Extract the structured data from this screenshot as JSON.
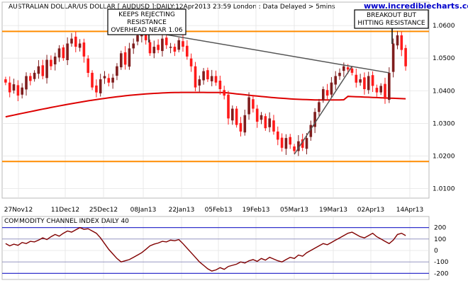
{
  "header": {
    "title": "AUSTRALIAN DOLLAR/US DOLLAR [ AUDUSD ]:DAILY:12Apr2013 23:59 London : Data Delayed > 5mins",
    "watermark": "www.incrediblecharts.com"
  },
  "annotations": {
    "left": [
      "KEEPS REJECTING",
      "RESISTANCE",
      "OVERHEAD NEAR 1.06"
    ],
    "right": [
      "BREAKOUT BUT",
      "HITTING RESISTANCE"
    ]
  },
  "colors": {
    "up": "#7f1d1d",
    "down": "#ff1a1a",
    "ma": "#dd0000",
    "support": "#ff8c00",
    "trend": "#555555",
    "cci": "#800000",
    "cci_band": "#3333cc",
    "cci_mid": "#8888bb"
  },
  "chart_data": [
    {
      "type": "candlestick",
      "title": "AUSTRALIAN DOLLAR/US DOLLAR [ AUDUSD ]:DAILY:12Apr2013 23:59 London : Data Delayed > 5mins",
      "x_ticks": [
        "27Nov12",
        "11Dec12",
        "25Dec12",
        "08Jan13",
        "22Jan13",
        "05Feb13",
        "19Feb13",
        "05Mar13",
        "19Mar13",
        "02Apr13",
        "14Apr13"
      ],
      "y_ticks": [
        "1.0100",
        "1.0200",
        "1.0300",
        "1.0400",
        "1.0500",
        "1.0600"
      ],
      "ylim": [
        1.0075,
        1.0635
      ],
      "horizontal_lines": [
        1.0582,
        1.0183
      ],
      "closes": [
        1.0425,
        1.0395,
        1.042,
        1.0385,
        1.041,
        1.0445,
        1.043,
        1.0455,
        1.0475,
        1.0445,
        1.0495,
        1.0475,
        1.0505,
        1.053,
        1.05,
        1.0545,
        1.056,
        1.0535,
        1.0545,
        1.0505,
        1.0455,
        1.041,
        1.0395,
        1.0435,
        1.0445,
        1.0425,
        1.044,
        1.0475,
        1.0515,
        1.048,
        1.053,
        1.0545,
        1.057,
        1.058,
        1.0555,
        1.0515,
        1.0535,
        1.0525,
        1.056,
        1.054,
        1.0535,
        1.052,
        1.0555,
        1.0535,
        1.0505,
        1.0475,
        1.041,
        1.0435,
        1.046,
        1.0435,
        1.0445,
        1.0425,
        1.0405,
        1.0385,
        1.0315,
        1.0345,
        1.0295,
        1.0275,
        1.0325,
        1.038,
        1.0345,
        1.0305,
        1.0325,
        1.0285,
        1.0315,
        1.0275,
        1.025,
        1.0225,
        1.0255,
        1.0235,
        1.0215,
        1.0245,
        1.0225,
        1.0255,
        1.0295,
        1.0335,
        1.0365,
        1.0405,
        1.0385,
        1.0425,
        1.0445,
        1.0455,
        1.0475,
        1.0465,
        1.0455,
        1.0425,
        1.0435,
        1.0405,
        1.0445,
        1.0415,
        1.0395,
        1.0415,
        1.0375,
        1.0455,
        1.0545,
        1.057,
        1.0525,
        1.0475
      ],
      "series": [
        {
          "name": "Moving average",
          "start": 1.032,
          "end": 1.0375
        }
      ]
    },
    {
      "type": "line",
      "title": "COMMODITY CHANNEL INDEX DAILY 40",
      "y_ticks": [
        "200",
        "100",
        "0",
        "-100",
        "-200"
      ],
      "ylim": [
        -235,
        235
      ],
      "horizontal_lines": [
        200,
        100,
        -100,
        -200
      ],
      "values": [
        60,
        40,
        55,
        45,
        70,
        60,
        80,
        75,
        90,
        110,
        95,
        120,
        140,
        125,
        150,
        170,
        160,
        180,
        200,
        185,
        190,
        170,
        150,
        110,
        60,
        10,
        -30,
        -70,
        -100,
        -90,
        -80,
        -60,
        -40,
        -20,
        10,
        40,
        55,
        65,
        80,
        75,
        90,
        85,
        95,
        60,
        20,
        -20,
        -60,
        -100,
        -130,
        -160,
        -180,
        -170,
        -150,
        -165,
        -140,
        -130,
        -120,
        -100,
        -110,
        -90,
        -80,
        -95,
        -70,
        -85,
        -60,
        -75,
        -90,
        -100,
        -80,
        -60,
        -70,
        -40,
        -50,
        -20,
        0,
        20,
        40,
        60,
        50,
        70,
        90,
        110,
        130,
        150,
        160,
        140,
        120,
        110,
        130,
        150,
        120,
        100,
        80,
        60,
        90,
        140,
        150,
        130
      ]
    }
  ]
}
